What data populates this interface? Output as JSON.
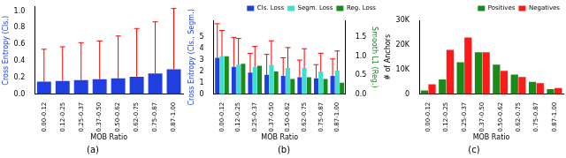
{
  "chart_data": [
    {
      "type": "bar",
      "caption": "(a)",
      "x_label": "MOB Ratio",
      "y_label": "Cross Entropy (Cls.)",
      "categories": [
        "0.00-0.12",
        "0.12-0.25",
        "0.25-0.37",
        "0.37-0.50",
        "0.50-0.62",
        "0.62-0.75",
        "0.75-0.87",
        "0.87-1.00"
      ],
      "values": [
        0.15,
        0.16,
        0.17,
        0.18,
        0.19,
        0.21,
        0.25,
        0.3
      ],
      "errors": [
        0.39,
        0.41,
        0.45,
        0.46,
        0.51,
        0.58,
        0.62,
        0.73
      ],
      "color": "#1f3fe0",
      "ylim": [
        0,
        1.05
      ],
      "yticks": [
        {
          "value": 0,
          "label": "0.0"
        },
        0.2,
        0.4,
        0.6,
        0.8,
        {
          "value": 1,
          "label": "1.0"
        }
      ],
      "grid": false
    },
    {
      "type": "bar",
      "caption": "(b)",
      "x_label": "MOB Ratio",
      "y_label": "Cross Entropy (Cls., Segm.)",
      "y2_label": "Smooth L1 (Reg.)",
      "categories": [
        "0.00-0.12",
        "0.12-0.25",
        "0.25-0.37",
        "0.37-0.50",
        "0.50-0.62",
        "0.62-0.75",
        "0.75-0.87",
        "0.87-1.00"
      ],
      "series": [
        {
          "name": "Cls. Loss",
          "color": "#1f3fe0",
          "values": [
            3.2,
            2.4,
            1.9,
            1.7,
            1.6,
            1.5,
            1.4,
            1.6
          ],
          "errors": [
            3.0,
            2.6,
            1.7,
            1.8,
            1.6,
            1.5,
            1.2,
            1.5
          ]
        },
        {
          "name": "Segm. Loss",
          "color": "#40e0d0",
          "values": [
            3.35,
            2.6,
            2.4,
            2.6,
            2.3,
            2.3,
            2.0,
            2.1
          ],
          "errors": [
            2.25,
            2.3,
            1.8,
            2.1,
            1.8,
            1.7,
            1.6,
            1.7
          ]
        },
        {
          "name": "Reg. Loss",
          "color": "#1a8a1a",
          "axis": "y2",
          "values": [
            1.0,
            0.8,
            0.75,
            0.6,
            0.4,
            0.45,
            0.4,
            0.3
          ]
        }
      ],
      "ylim": [
        0,
        6.5
      ],
      "yticks": [
        0,
        1,
        2,
        3,
        4,
        5
      ],
      "y2lim": [
        0,
        1.95
      ],
      "y2ticks": [
        {
          "value": 0,
          "label": "0.0"
        },
        0.5,
        {
          "value": 1,
          "label": "1.0"
        },
        1.5
      ],
      "legend": "upper right",
      "grid": false
    },
    {
      "type": "bar",
      "caption": "(c)",
      "x_label": "MOB Ratio",
      "y_label": "# of Anchors",
      "categories": [
        "0.00-0.12",
        "0.12-0.25",
        "0.25-0.37",
        "0.37-0.50",
        "0.50-0.62",
        "0.62-0.75",
        "0.75-0.87",
        "0.87-1.00"
      ],
      "series": [
        {
          "name": "Positives",
          "color": "#1a8a1a",
          "values": [
            1500,
            6000,
            13000,
            17000,
            12000,
            8000,
            5000,
            2000
          ]
        },
        {
          "name": "Negatives",
          "color": "#ff1a1a",
          "values": [
            4000,
            18000,
            23000,
            17000,
            9500,
            7000,
            4500,
            2500
          ]
        }
      ],
      "ylim": [
        0,
        30000
      ],
      "yticks": [
        0,
        {
          "value": 10000,
          "label": "10K"
        },
        {
          "value": 20000,
          "label": "20K"
        },
        {
          "value": 30000,
          "label": "30K"
        }
      ],
      "legend": "upper right",
      "grid": false
    }
  ]
}
